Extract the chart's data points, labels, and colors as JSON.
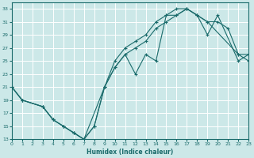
{
  "xlabel": "Humidex (Indice chaleur)",
  "bg_color": "#cce8e8",
  "line_color": "#1a6b6b",
  "grid_color": "#ffffff",
  "xlim": [
    0,
    23
  ],
  "ylim": [
    13,
    34
  ],
  "xticks": [
    0,
    1,
    2,
    3,
    4,
    5,
    6,
    7,
    8,
    9,
    10,
    11,
    12,
    13,
    14,
    15,
    16,
    17,
    18,
    19,
    20,
    21,
    22,
    23
  ],
  "ytick_vals": [
    13,
    15,
    17,
    19,
    21,
    23,
    25,
    27,
    29,
    31,
    33
  ],
  "lines": [
    {
      "x": [
        0,
        1,
        3,
        4,
        5,
        6,
        7,
        8,
        9,
        10,
        11,
        12,
        13,
        14,
        15,
        16,
        17,
        18,
        19,
        20,
        21,
        22,
        23
      ],
      "y": [
        21,
        19,
        18,
        16,
        15,
        14,
        13,
        15,
        21,
        24,
        26,
        27,
        28,
        30,
        31,
        32,
        33,
        32,
        31,
        31,
        30,
        26,
        26
      ]
    },
    {
      "x": [
        0,
        1,
        3,
        4,
        5,
        6,
        7,
        9,
        10,
        11,
        12,
        13,
        14,
        15,
        16,
        17,
        18,
        19,
        20,
        22,
        23
      ],
      "y": [
        21,
        19,
        18,
        16,
        15,
        14,
        13,
        21,
        25,
        27,
        28,
        29,
        31,
        32,
        33,
        33,
        32,
        29,
        32,
        25,
        26
      ]
    },
    {
      "x": [
        0,
        1,
        3,
        4,
        5,
        6,
        7,
        8,
        9,
        10,
        11,
        12,
        13,
        14,
        15,
        16,
        17,
        18,
        19,
        22,
        23
      ],
      "y": [
        21,
        19,
        18,
        16,
        15,
        14,
        13,
        15,
        21,
        24,
        26,
        23,
        26,
        25,
        32,
        32,
        33,
        32,
        31,
        26,
        25
      ]
    }
  ],
  "figsize": [
    3.2,
    2.0
  ],
  "dpi": 100
}
